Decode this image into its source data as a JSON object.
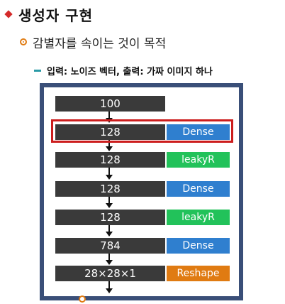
{
  "slide": {
    "title": "생성자 구현",
    "subtitle": "감별자를 속이는 것이 목적",
    "io_text": "입력: 노이즈 벡터, 출력: 가짜 이미지 하나"
  },
  "layers": [
    {
      "size": "100",
      "op": ""
    },
    {
      "size": "128",
      "op": "Dense"
    },
    {
      "size": "128",
      "op": "leakyR"
    },
    {
      "size": "128",
      "op": "Dense"
    },
    {
      "size": "128",
      "op": "leakyR"
    },
    {
      "size": "784",
      "op": "Dense"
    },
    {
      "size": "28×28×1",
      "op": "Reshape"
    }
  ],
  "colors": {
    "dense": "#2f7fcf",
    "leaky": "#22c25a",
    "reshape": "#e07b12",
    "frame": "#3a4f78",
    "highlight": "#cc1d1d"
  }
}
